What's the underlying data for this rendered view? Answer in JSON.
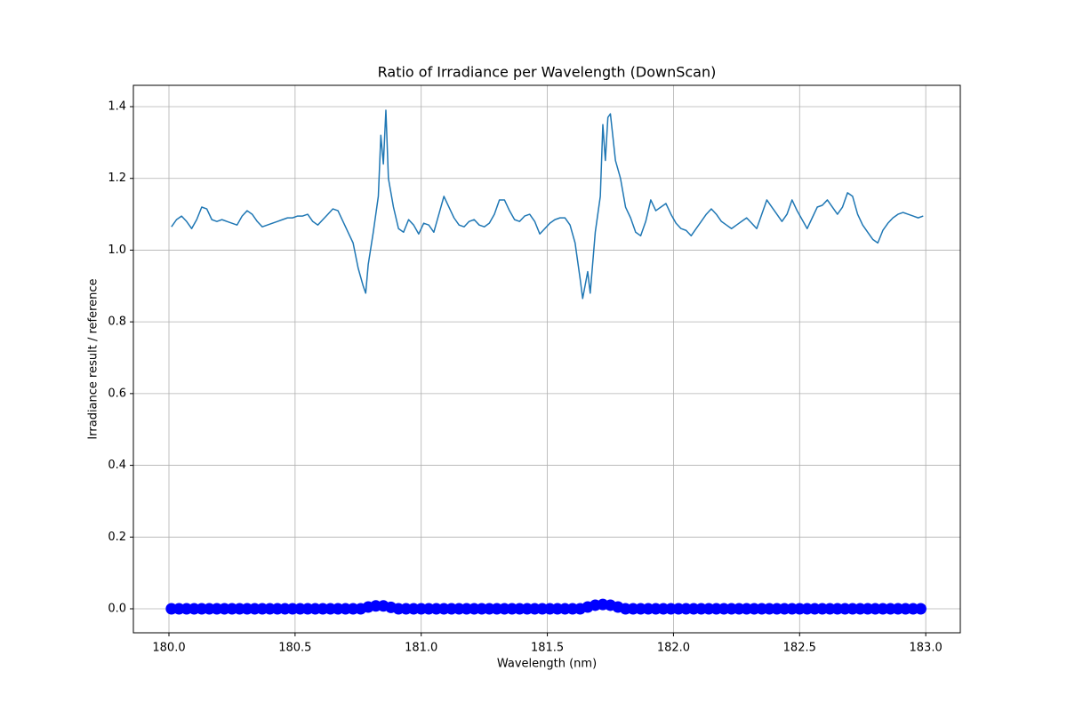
{
  "chart_data": {
    "type": "line",
    "title": "Ratio of Irradiance per Wavelength (DownScan)",
    "x_label": "Wavelength (nm)",
    "y_label": "Irradiance result / reference",
    "xlim": [
      179.859,
      183.137
    ],
    "ylim": [
      -0.0669,
      1.4595
    ],
    "xticks": [
      {
        "value": 180,
        "label": "180.0"
      },
      180.5,
      {
        "value": 181,
        "label": "181.0"
      },
      181.5,
      {
        "value": 182,
        "label": "182.0"
      },
      182.5,
      {
        "value": 183,
        "label": "183.0"
      }
    ],
    "yticks": [
      {
        "value": 0,
        "label": "0.0"
      },
      0.2,
      0.4,
      0.6,
      0.8,
      {
        "value": 1,
        "label": "1.0"
      },
      1.2,
      1.4
    ],
    "grid": true,
    "series": [
      {
        "type": "line",
        "color": "#1f77b4",
        "x": [
          180.01,
          180.03,
          180.05,
          180.07,
          180.09,
          180.11,
          180.13,
          180.15,
          180.17,
          180.19,
          180.21,
          180.23,
          180.25,
          180.27,
          180.29,
          180.31,
          180.33,
          180.35,
          180.37,
          180.39,
          180.41,
          180.43,
          180.45,
          180.47,
          180.49,
          180.51,
          180.53,
          180.55,
          180.57,
          180.59,
          180.61,
          180.63,
          180.65,
          180.67,
          180.69,
          180.71,
          180.73,
          180.75,
          180.77,
          180.78,
          180.79,
          180.81,
          180.83,
          180.84,
          180.85,
          180.86,
          180.87,
          180.89,
          180.91,
          180.93,
          180.95,
          180.97,
          180.99,
          181.01,
          181.03,
          181.05,
          181.07,
          181.09,
          181.11,
          181.13,
          181.15,
          181.17,
          181.19,
          181.21,
          181.23,
          181.25,
          181.27,
          181.29,
          181.31,
          181.33,
          181.35,
          181.37,
          181.39,
          181.41,
          181.43,
          181.45,
          181.47,
          181.49,
          181.51,
          181.53,
          181.55,
          181.57,
          181.59,
          181.61,
          181.63,
          181.64,
          181.66,
          181.67,
          181.69,
          181.71,
          181.72,
          181.73,
          181.74,
          181.75,
          181.77,
          181.79,
          181.81,
          181.83,
          181.85,
          181.87,
          181.89,
          181.91,
          181.93,
          181.95,
          181.97,
          181.99,
          182.01,
          182.03,
          182.05,
          182.07,
          182.09,
          182.11,
          182.13,
          182.15,
          182.17,
          182.19,
          182.21,
          182.23,
          182.25,
          182.27,
          182.29,
          182.31,
          182.33,
          182.35,
          182.37,
          182.39,
          182.41,
          182.43,
          182.45,
          182.47,
          182.49,
          182.51,
          182.53,
          182.55,
          182.57,
          182.59,
          182.61,
          182.63,
          182.65,
          182.67,
          182.69,
          182.71,
          182.73,
          182.75,
          182.77,
          182.79,
          182.81,
          182.83,
          182.85,
          182.87,
          182.89,
          182.91,
          182.93,
          182.95,
          182.97,
          182.99
        ],
        "values": [
          1.065,
          1.085,
          1.095,
          1.08,
          1.06,
          1.085,
          1.12,
          1.115,
          1.085,
          1.08,
          1.085,
          1.08,
          1.075,
          1.07,
          1.095,
          1.11,
          1.1,
          1.08,
          1.065,
          1.07,
          1.075,
          1.08,
          1.085,
          1.09,
          1.09,
          1.095,
          1.095,
          1.1,
          1.08,
          1.07,
          1.085,
          1.1,
          1.115,
          1.11,
          1.08,
          1.05,
          1.02,
          0.95,
          0.9,
          0.88,
          0.96,
          1.05,
          1.15,
          1.32,
          1.24,
          1.39,
          1.2,
          1.12,
          1.06,
          1.05,
          1.085,
          1.07,
          1.045,
          1.075,
          1.07,
          1.05,
          1.1,
          1.15,
          1.12,
          1.09,
          1.07,
          1.065,
          1.08,
          1.085,
          1.07,
          1.065,
          1.075,
          1.1,
          1.14,
          1.14,
          1.11,
          1.085,
          1.08,
          1.095,
          1.1,
          1.08,
          1.045,
          1.06,
          1.075,
          1.085,
          1.09,
          1.09,
          1.07,
          1.02,
          0.92,
          0.865,
          0.94,
          0.88,
          1.05,
          1.15,
          1.35,
          1.25,
          1.37,
          1.38,
          1.25,
          1.2,
          1.12,
          1.09,
          1.05,
          1.04,
          1.08,
          1.14,
          1.11,
          1.12,
          1.13,
          1.1,
          1.075,
          1.06,
          1.055,
          1.04,
          1.06,
          1.08,
          1.1,
          1.115,
          1.1,
          1.08,
          1.07,
          1.06,
          1.07,
          1.08,
          1.09,
          1.075,
          1.06,
          1.1,
          1.14,
          1.12,
          1.1,
          1.08,
          1.1,
          1.14,
          1.11,
          1.085,
          1.06,
          1.09,
          1.12,
          1.125,
          1.14,
          1.12,
          1.1,
          1.12,
          1.16,
          1.15,
          1.1,
          1.07,
          1.05,
          1.03,
          1.02,
          1.055,
          1.075,
          1.09,
          1.1,
          1.105,
          1.1,
          1.095,
          1.09,
          1.095
        ]
      },
      {
        "type": "scatter",
        "color": "#0000ff",
        "x": [
          180.01,
          180.04,
          180.07,
          180.1,
          180.13,
          180.16,
          180.19,
          180.22,
          180.25,
          180.28,
          180.31,
          180.34,
          180.37,
          180.4,
          180.43,
          180.46,
          180.49,
          180.52,
          180.55,
          180.58,
          180.61,
          180.64,
          180.67,
          180.7,
          180.73,
          180.76,
          180.79,
          180.82,
          180.85,
          180.88,
          180.91,
          180.94,
          180.97,
          181,
          181.03,
          181.06,
          181.09,
          181.12,
          181.15,
          181.18,
          181.21,
          181.24,
          181.27,
          181.3,
          181.33,
          181.36,
          181.39,
          181.42,
          181.45,
          181.48,
          181.51,
          181.54,
          181.57,
          181.6,
          181.63,
          181.66,
          181.69,
          181.72,
          181.75,
          181.78,
          181.81,
          181.84,
          181.87,
          181.9,
          181.93,
          181.96,
          181.99,
          182.02,
          182.05,
          182.08,
          182.11,
          182.14,
          182.17,
          182.2,
          182.23,
          182.26,
          182.29,
          182.32,
          182.35,
          182.38,
          182.41,
          182.44,
          182.47,
          182.5,
          182.53,
          182.56,
          182.59,
          182.62,
          182.65,
          182.68,
          182.71,
          182.74,
          182.77,
          182.8,
          182.83,
          182.86,
          182.89,
          182.92,
          182.95,
          182.98
        ],
        "values": [
          0,
          0,
          0,
          0,
          0,
          0,
          0,
          0,
          0,
          0,
          0,
          0,
          0,
          0,
          0,
          0,
          0,
          0,
          0,
          0,
          0,
          0,
          0,
          0,
          0,
          0,
          0.005,
          0.008,
          0.008,
          0.004,
          0,
          0,
          0,
          0,
          0,
          0,
          0,
          0,
          0,
          0,
          0,
          0,
          0,
          0,
          0,
          0,
          0,
          0,
          0,
          0,
          0,
          0,
          0,
          0,
          0,
          0.005,
          0.01,
          0.012,
          0.01,
          0.005,
          0,
          0,
          0,
          0,
          0,
          0,
          0,
          0,
          0,
          0,
          0,
          0,
          0,
          0,
          0,
          0,
          0,
          0,
          0,
          0,
          0,
          0,
          0,
          0,
          0,
          0,
          0,
          0,
          0,
          0,
          0,
          0,
          0,
          0,
          0,
          0,
          0,
          0,
          0,
          0
        ]
      }
    ]
  }
}
